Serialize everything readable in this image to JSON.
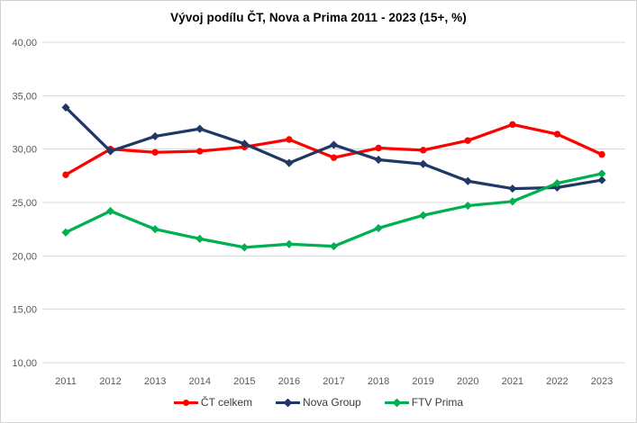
{
  "figure": {
    "title": "Vývoj podílu ČT, Nova a Prima 2011 - 2023 (15+, %)"
  },
  "chart_data": {
    "type": "line",
    "title": "Vývoj podílu ČT, Nova a Prima 2011 - 2023 (15+, %)",
    "categories": [
      "2011",
      "2012",
      "2013",
      "2014",
      "2015",
      "2016",
      "2017",
      "2018",
      "2019",
      "2020",
      "2021",
      "2022",
      "2023"
    ],
    "series": [
      {
        "name": "ČT celkem",
        "color": "#FF0000",
        "marker": "circle",
        "values": [
          27.6,
          30.0,
          29.7,
          29.8,
          30.2,
          30.9,
          29.2,
          30.1,
          29.9,
          30.8,
          32.3,
          31.4,
          29.5
        ]
      },
      {
        "name": "Nova Group",
        "color": "#1F3864",
        "marker": "diamond",
        "values": [
          33.9,
          29.8,
          31.2,
          31.9,
          30.5,
          28.7,
          30.4,
          29.0,
          28.6,
          27.0,
          26.3,
          26.4,
          27.1
        ]
      },
      {
        "name": "FTV Prima",
        "color": "#00B050",
        "marker": "diamond",
        "values": [
          22.2,
          24.2,
          22.5,
          21.6,
          20.8,
          21.1,
          20.9,
          22.6,
          23.8,
          24.7,
          25.1,
          26.8,
          27.7
        ]
      }
    ],
    "ylim": [
      10,
      40
    ],
    "y_ticks": [
      40,
      35,
      30,
      25,
      20,
      15,
      10
    ],
    "y_tick_labels": [
      "40,00",
      "35,00",
      "30,00",
      "25,00",
      "20,00",
      "15,00",
      "10,00"
    ],
    "grid": true,
    "legend_position": "bottom",
    "gridline_color": "#D9D9D9",
    "axis_text_color": "#595959"
  }
}
